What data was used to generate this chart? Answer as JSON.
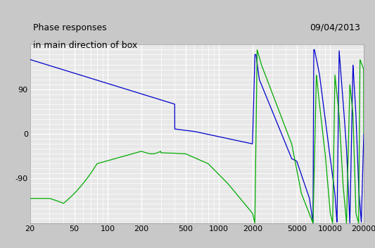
{
  "title_line1": "Phase responses",
  "title_line2": "in main direction of box",
  "date_label": "09/04/2013",
  "xmin": 20,
  "xmax": 20000,
  "ymin": -180,
  "ymax": 180,
  "yticks": [
    -90,
    0,
    90
  ],
  "xticks": [
    20,
    50,
    100,
    200,
    500,
    1000,
    2000,
    5000,
    10000,
    20000
  ],
  "xtick_labels": [
    "20",
    "50",
    "100",
    "200",
    "500",
    "1000",
    "2000",
    "5000",
    "10000",
    "20000"
  ],
  "outer_bg": "#c8c8c8",
  "plot_bg_color": "#e8e8e8",
  "grid_major_color": "#ffffff",
  "grid_minor_color": "#d8d8d8",
  "blue_color": "#0000cc",
  "green_color": "#00aa00",
  "title_fontsize": 9,
  "date_fontsize": 9,
  "tick_fontsize": 8
}
